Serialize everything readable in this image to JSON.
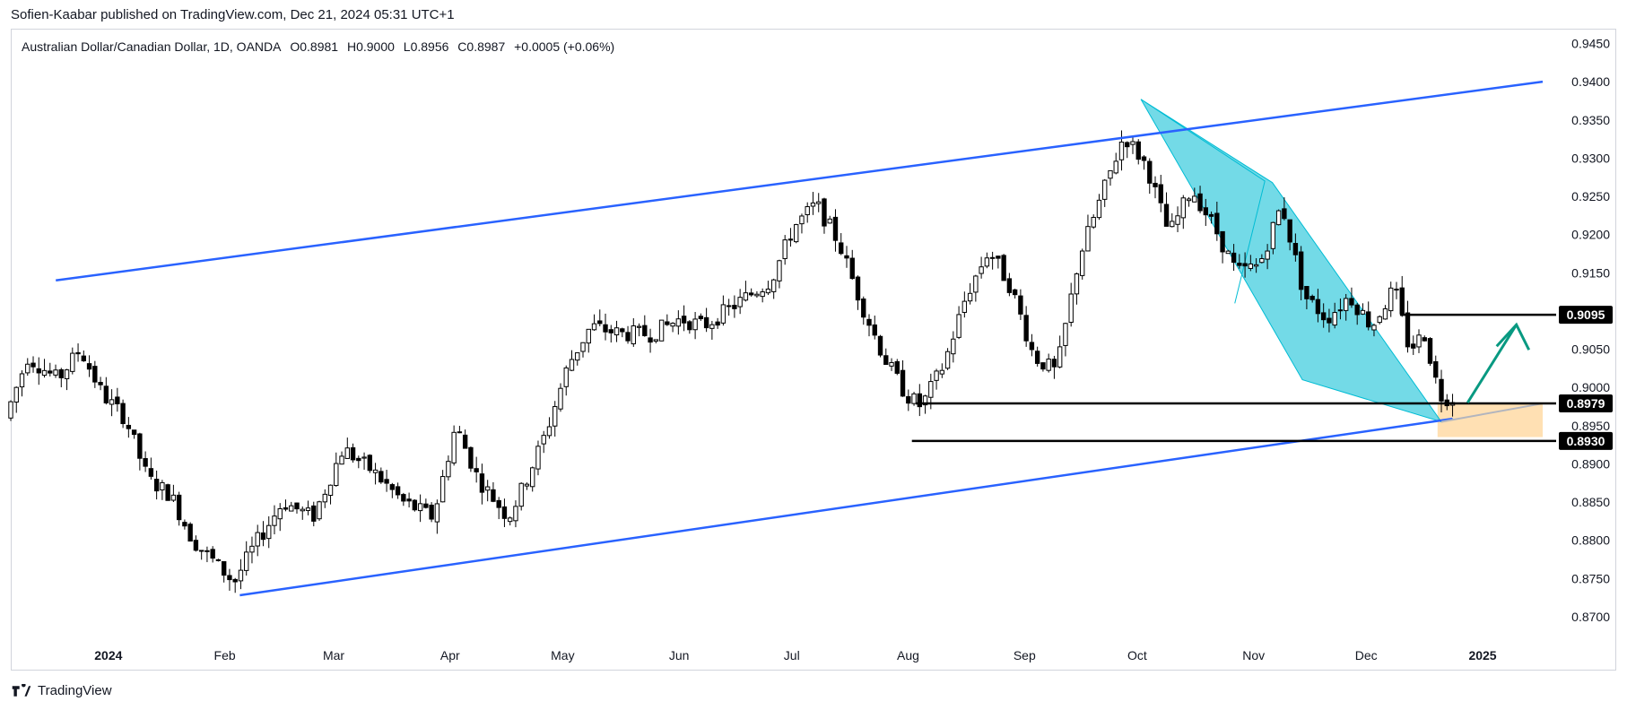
{
  "publisher_line": "Sofien-Kaabar published on TradingView.com, Dec 21, 2024 05:31 UTC+1",
  "symbol": {
    "name": "Australian Dollar/Canadian Dollar, 1D, OANDA",
    "open": "O0.8981",
    "high": "H0.9000",
    "low": "L0.8956",
    "close": "C0.8987",
    "change": "+0.0005 (+0.06%)"
  },
  "brand": "TradingView",
  "colors": {
    "candle_up": "#ffffff",
    "candle_down": "#000000",
    "wick": "#000000",
    "channel": "#2962ff",
    "pattern_fill": "#00bcd4",
    "target_zone": "#ffcc80",
    "target_arrow": "#089981",
    "axis_text": "#131722",
    "grid": "#f0f3fa"
  },
  "chart_data": {
    "type": "candlestick",
    "symbol": "AUDCAD",
    "timeframe": "1D",
    "y_axis": {
      "min": 0.866,
      "max": 0.946,
      "ticks": [
        "0.9450",
        "0.9400",
        "0.9350",
        "0.9300",
        "0.9250",
        "0.9200",
        "0.9150",
        "0.9100",
        "0.9050",
        "0.9000",
        "0.8950",
        "0.8900",
        "0.8850",
        "0.8800",
        "0.8750",
        "0.8700"
      ]
    },
    "x_axis": {
      "labels": [
        "2024",
        "Feb",
        "Mar",
        "Apr",
        "May",
        "Jun",
        "Jul",
        "Aug",
        "Sep",
        "Oct",
        "Nov",
        "Dec",
        "2025"
      ],
      "label_days": [
        0,
        31,
        60,
        91,
        121,
        152,
        182,
        213,
        244,
        274,
        305,
        335,
        366
      ]
    },
    "days_visible": [
      -26,
      382
    ],
    "price_path": [
      [
        -26,
        0.896
      ],
      [
        -20,
        0.904
      ],
      [
        -12,
        0.901
      ],
      [
        -6,
        0.905
      ],
      [
        0,
        0.899
      ],
      [
        6,
        0.896
      ],
      [
        12,
        0.888
      ],
      [
        18,
        0.886
      ],
      [
        24,
        0.88
      ],
      [
        30,
        0.877
      ],
      [
        35,
        0.8745
      ],
      [
        40,
        0.879
      ],
      [
        48,
        0.885
      ],
      [
        56,
        0.883
      ],
      [
        64,
        0.892
      ],
      [
        72,
        0.889
      ],
      [
        80,
        0.885
      ],
      [
        88,
        0.883
      ],
      [
        94,
        0.895
      ],
      [
        100,
        0.888
      ],
      [
        108,
        0.883
      ],
      [
        112,
        0.887
      ],
      [
        118,
        0.894
      ],
      [
        124,
        0.903
      ],
      [
        130,
        0.908
      ],
      [
        138,
        0.907
      ],
      [
        146,
        0.907
      ],
      [
        154,
        0.909
      ],
      [
        160,
        0.908
      ],
      [
        166,
        0.91
      ],
      [
        172,
        0.912
      ],
      [
        178,
        0.914
      ],
      [
        184,
        0.921
      ],
      [
        190,
        0.924
      ],
      [
        196,
        0.919
      ],
      [
        202,
        0.911
      ],
      [
        208,
        0.904
      ],
      [
        214,
        0.899
      ],
      [
        218,
        0.8975
      ],
      [
        224,
        0.903
      ],
      [
        230,
        0.912
      ],
      [
        236,
        0.918
      ],
      [
        242,
        0.913
      ],
      [
        248,
        0.904
      ],
      [
        254,
        0.902
      ],
      [
        260,
        0.917
      ],
      [
        266,
        0.925
      ],
      [
        272,
        0.933
      ],
      [
        278,
        0.929
      ],
      [
        284,
        0.92
      ],
      [
        290,
        0.926
      ],
      [
        296,
        0.921
      ],
      [
        302,
        0.915
      ],
      [
        308,
        0.916
      ],
      [
        314,
        0.924
      ],
      [
        320,
        0.912
      ],
      [
        326,
        0.909
      ],
      [
        332,
        0.912
      ],
      [
        338,
        0.908
      ],
      [
        344,
        0.913
      ],
      [
        348,
        0.905
      ],
      [
        352,
        0.907
      ],
      [
        356,
        0.899
      ],
      [
        358,
        0.8987
      ]
    ],
    "candle_count": 258,
    "drawings": {
      "upper_channel": {
        "from": [
          -14,
          0.914
        ],
        "to": [
          382,
          0.94
        ]
      },
      "lower_channel": {
        "from": [
          35,
          0.8728
        ],
        "to": [
          358,
          0.8959
        ]
      },
      "horizontal_levels": [
        {
          "price": 0.9095,
          "label": "0.9095",
          "from_day": 344
        },
        {
          "price": 0.8979,
          "label": "0.8979",
          "from_day": 215
        },
        {
          "price": 0.893,
          "label": "0.8930",
          "from_day": 214
        }
      ],
      "pattern_points": [
        [
          275,
          0.9377
        ],
        [
          310,
          0.9268
        ],
        [
          355,
          0.8955
        ],
        [
          318,
          0.901
        ]
      ],
      "pattern_inner": [
        [
          275,
          0.9377
        ],
        [
          308,
          0.927
        ],
        [
          300,
          0.911
        ]
      ],
      "target_zone": {
        "from_day": 354,
        "to_day": 382,
        "price_low": 0.8935,
        "price_high": 0.8979
      },
      "projection_line": {
        "from": [
          355,
          0.8955
        ],
        "to": [
          382,
          0.8979
        ]
      },
      "target_arrow": {
        "from": [
          362,
          0.898
        ],
        "to": [
          375,
          0.9082
        ]
      }
    }
  }
}
